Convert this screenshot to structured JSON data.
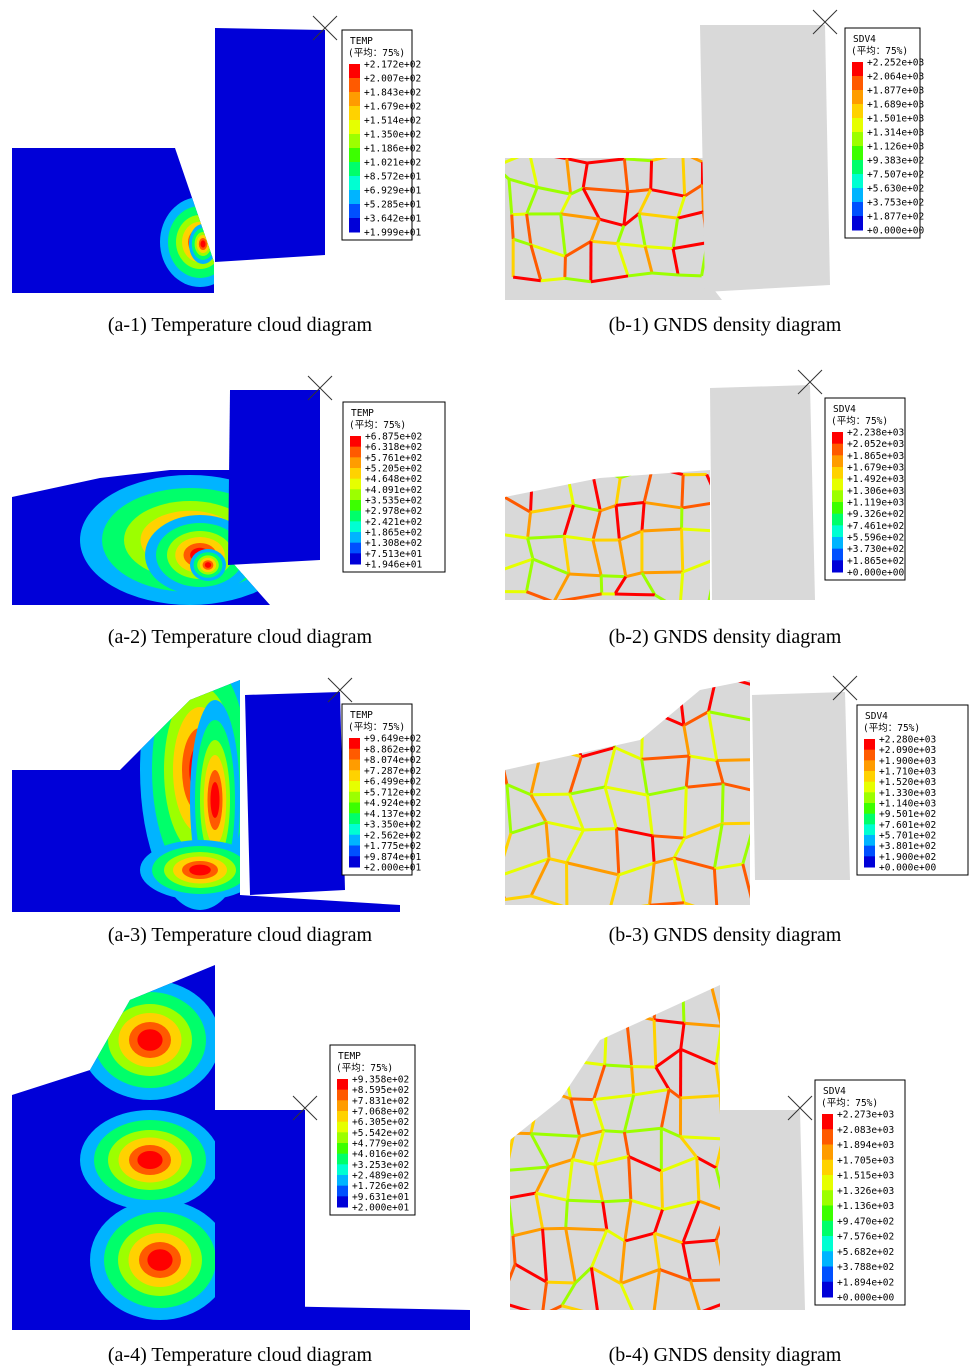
{
  "panels": [
    {
      "caption": "(a-1) Temperature cloud diagram",
      "legend": {
        "title": "TEMP",
        "subtitle": "(平均：75%)",
        "labels": [
          "+2.172e+02",
          "+2.007e+02",
          "+1.843e+02",
          "+1.679e+02",
          "+1.514e+02",
          "+1.350e+02",
          "+1.186e+02",
          "+1.021e+02",
          "+8.572e+01",
          "+6.929e+01",
          "+5.285e+01",
          "+3.642e+01",
          "+1.999e+01"
        ]
      }
    },
    {
      "caption": "(b-1) GNDS density diagram",
      "legend": {
        "title": "SDV4",
        "subtitle": "(平均：75%)",
        "labels": [
          "+2.252e+03",
          "+2.064e+03",
          "+1.877e+03",
          "+1.689e+03",
          "+1.501e+03",
          "+1.314e+03",
          "+1.126e+03",
          "+9.383e+02",
          "+7.507e+02",
          "+5.630e+02",
          "+3.753e+02",
          "+1.877e+02",
          "+0.000e+00"
        ]
      }
    },
    {
      "caption": "(a-2) Temperature cloud diagram",
      "legend": {
        "title": "TEMP",
        "subtitle": "(平均：75%)",
        "labels": [
          "+6.875e+02",
          "+6.318e+02",
          "+5.761e+02",
          "+5.205e+02",
          "+4.648e+02",
          "+4.091e+02",
          "+3.535e+02",
          "+2.978e+02",
          "+2.421e+02",
          "+1.865e+02",
          "+1.308e+02",
          "+7.513e+01",
          "+1.946e+01"
        ]
      }
    },
    {
      "caption": "(b-2) GNDS density diagram",
      "legend": {
        "title": "SDV4",
        "subtitle": "(平均：75%)",
        "labels": [
          "+2.238e+03",
          "+2.052e+03",
          "+1.865e+03",
          "+1.679e+03",
          "+1.492e+03",
          "+1.306e+03",
          "+1.119e+03",
          "+9.326e+02",
          "+7.461e+02",
          "+5.596e+02",
          "+3.730e+02",
          "+1.865e+02",
          "+0.000e+00"
        ]
      }
    },
    {
      "caption": "(a-3) Temperature cloud diagram",
      "legend": {
        "title": "TEMP",
        "subtitle": "(平均：75%)",
        "labels": [
          "+9.649e+02",
          "+8.862e+02",
          "+8.074e+02",
          "+7.287e+02",
          "+6.499e+02",
          "+5.712e+02",
          "+4.924e+02",
          "+4.137e+02",
          "+3.350e+02",
          "+2.562e+02",
          "+1.775e+02",
          "+9.874e+01",
          "+2.000e+01"
        ]
      }
    },
    {
      "caption": "(b-3) GNDS density diagram",
      "legend": {
        "title": "SDV4",
        "subtitle": "(平均：75%)",
        "labels": [
          "+2.280e+03",
          "+2.090e+03",
          "+1.900e+03",
          "+1.710e+03",
          "+1.520e+03",
          "+1.330e+03",
          "+1.140e+03",
          "+9.501e+02",
          "+7.601e+02",
          "+5.701e+02",
          "+3.801e+02",
          "+1.900e+02",
          "+0.000e+00"
        ]
      }
    },
    {
      "caption": "(a-4) Temperature cloud diagram",
      "legend": {
        "title": "TEMP",
        "subtitle": "(平均：75%)",
        "labels": [
          "+9.358e+02",
          "+8.595e+02",
          "+7.831e+02",
          "+7.068e+02",
          "+6.305e+02",
          "+5.542e+02",
          "+4.779e+02",
          "+4.016e+02",
          "+3.253e+02",
          "+2.489e+02",
          "+1.726e+02",
          "+9.631e+01",
          "+2.000e+01"
        ]
      }
    },
    {
      "caption": "(b-4) GNDS density diagram",
      "legend": {
        "title": "SDV4",
        "subtitle": "(平均：75%)",
        "labels": [
          "+2.273e+03",
          "+2.083e+03",
          "+1.894e+03",
          "+1.705e+03",
          "+1.515e+03",
          "+1.326e+03",
          "+1.136e+03",
          "+9.470e+02",
          "+7.576e+02",
          "+5.682e+02",
          "+3.788e+02",
          "+1.894e+02",
          "+0.000e+00"
        ]
      }
    }
  ]
}
